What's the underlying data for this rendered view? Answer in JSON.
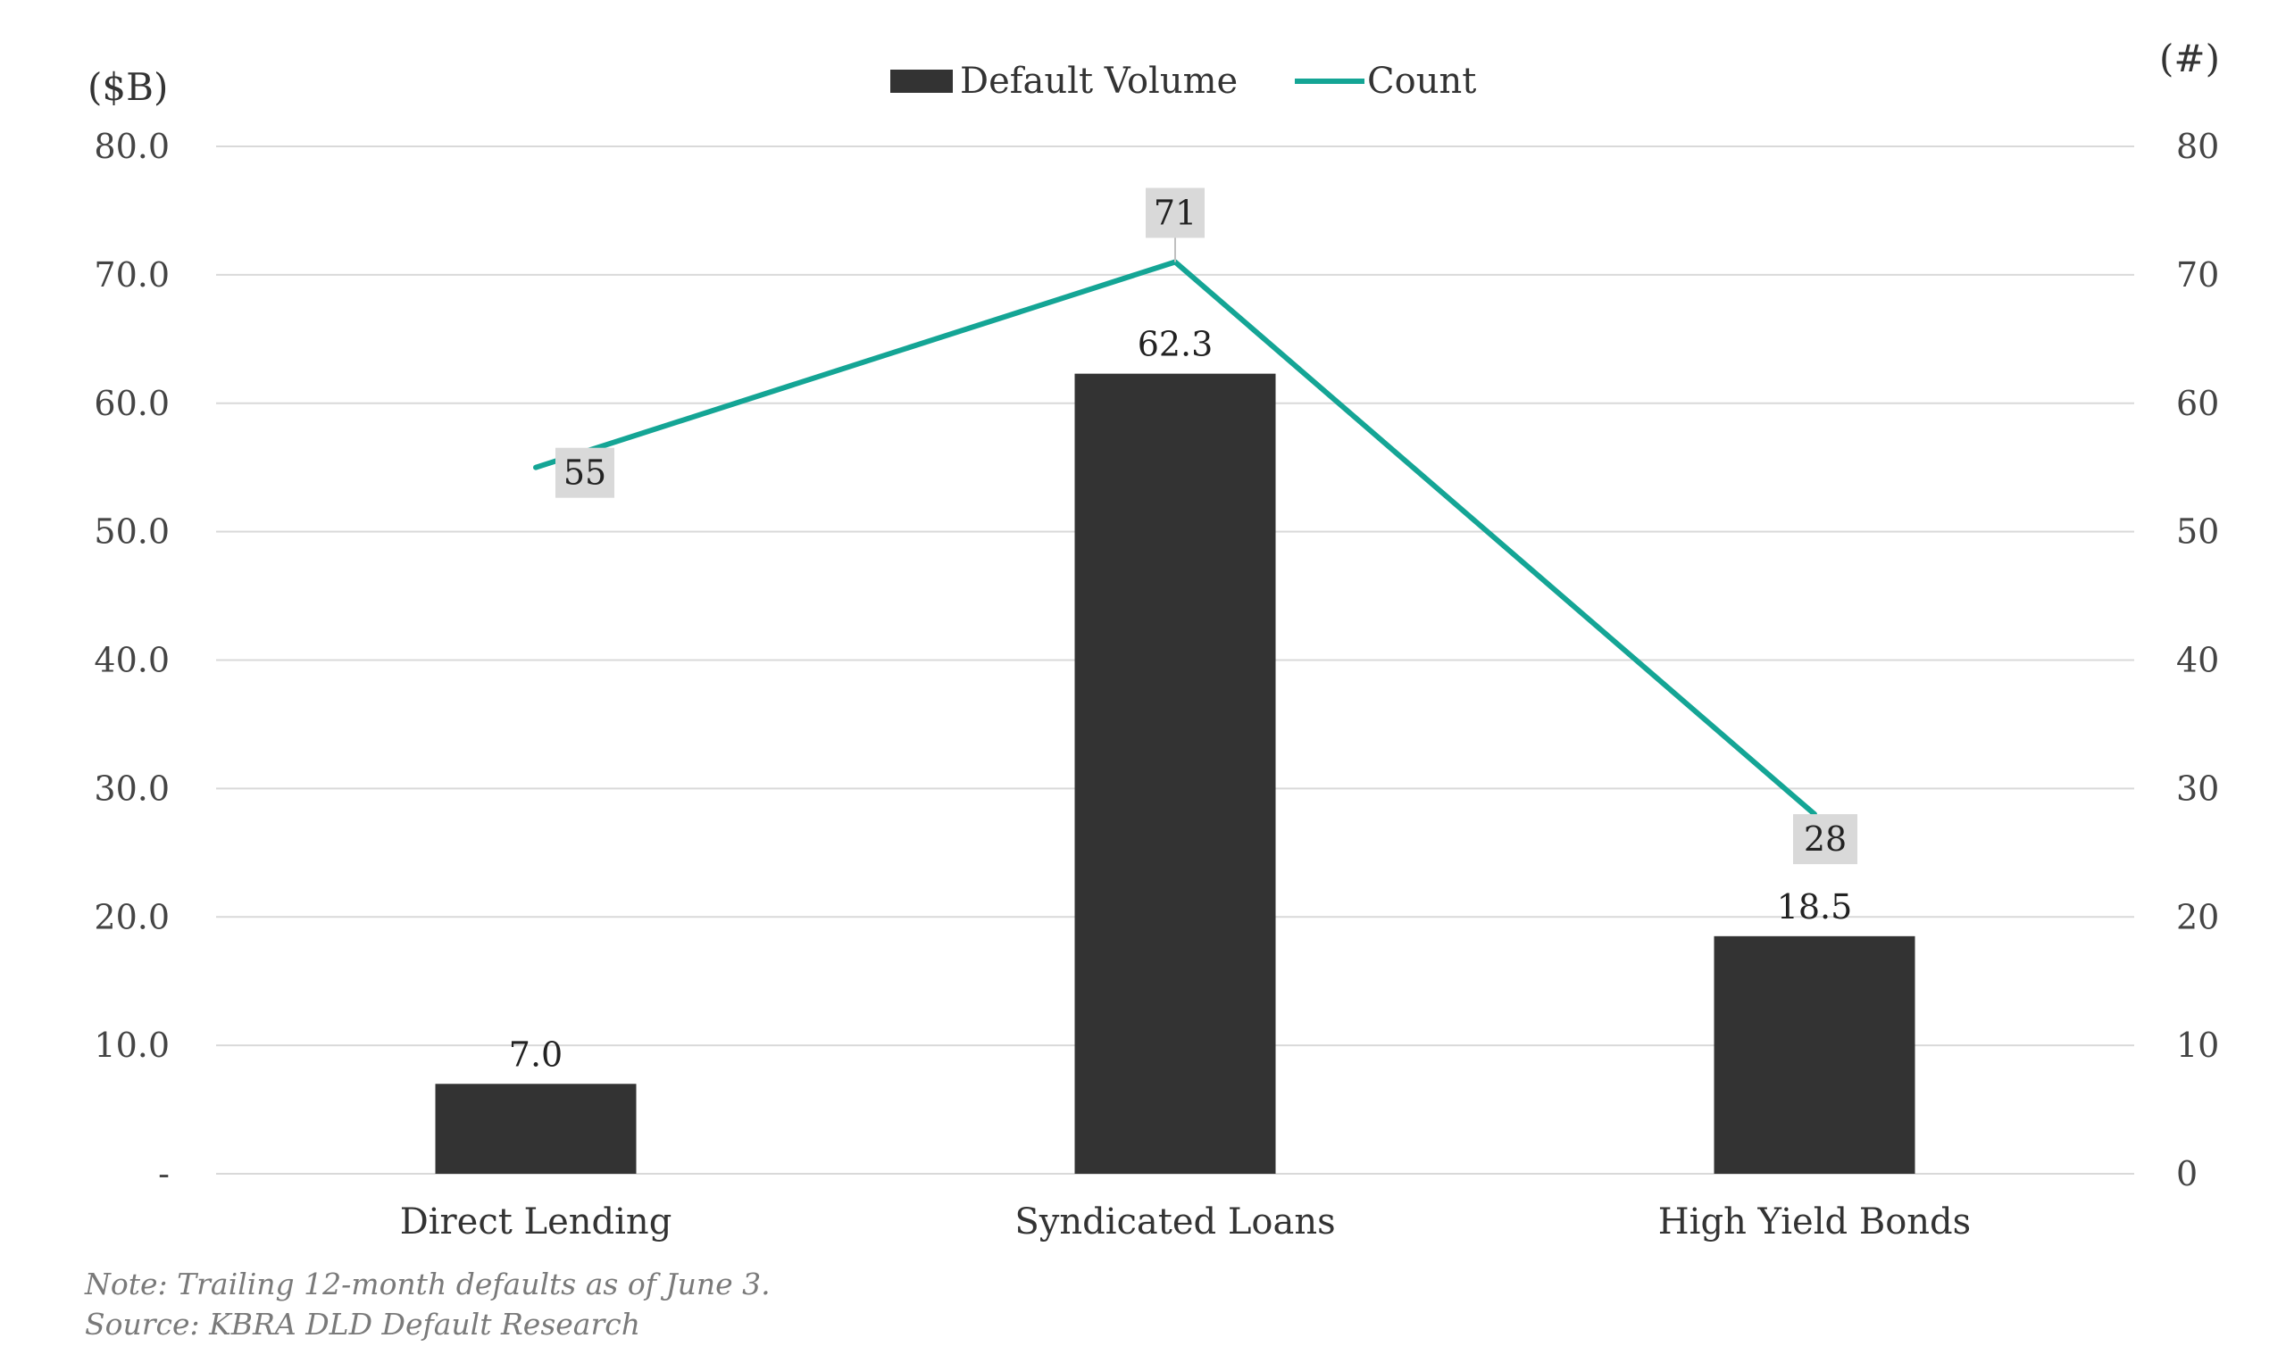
{
  "chart_data": {
    "type": "bar",
    "categories": [
      "Direct Lending",
      "Syndicated Loans",
      "High Yield Bonds"
    ],
    "series": [
      {
        "name": "Default Volume",
        "type": "bar",
        "axis": "left",
        "values": [
          7.0,
          62.3,
          18.5
        ],
        "labels": [
          "7.0",
          "62.3",
          "18.5"
        ],
        "color": "#333333"
      },
      {
        "name": "Count",
        "type": "line",
        "axis": "right",
        "values": [
          55,
          71,
          28
        ],
        "labels": [
          "55",
          "71",
          "28"
        ],
        "color": "#14a595"
      }
    ],
    "y_left": {
      "unit_label": "($B)",
      "range": [
        0,
        80
      ],
      "ticks": [
        0,
        10,
        20,
        30,
        40,
        50,
        60,
        70,
        80
      ],
      "tick_labels": [
        "-",
        "10.0",
        "20.0",
        "30.0",
        "40.0",
        "50.0",
        "60.0",
        "70.0",
        "80.0"
      ]
    },
    "y_right": {
      "unit_label": "(#)",
      "range": [
        0,
        80
      ],
      "ticks": [
        0,
        10,
        20,
        30,
        40,
        50,
        60,
        70,
        80
      ],
      "tick_labels": [
        "0",
        "10",
        "20",
        "30",
        "40",
        "50",
        "60",
        "70",
        "80"
      ]
    },
    "grid": true,
    "legend_position": "top-center",
    "label_box_color": "#d9d9d9",
    "gridline_color": "#d9d9d9"
  },
  "footer": {
    "note": "Note: Trailing 12-month defaults as of June 3.",
    "source": "Source: KBRA DLD Default Research"
  }
}
